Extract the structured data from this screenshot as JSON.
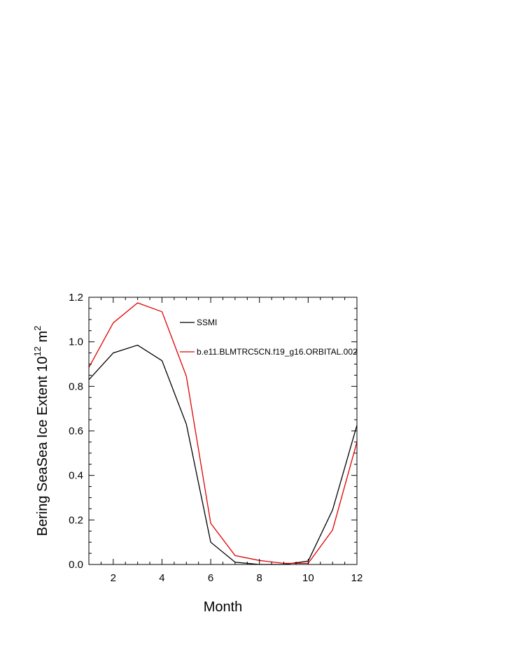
{
  "chart_data": {
    "type": "line",
    "xlabel": "Month",
    "ylabel_parts": [
      "Bering SeaSea Ice Extent 10",
      "12",
      " m",
      "2"
    ],
    "xlim": [
      1,
      12
    ],
    "ylim": [
      0,
      1.2
    ],
    "x_ticks": [
      2,
      4,
      6,
      8,
      10,
      12
    ],
    "y_ticks": [
      "0.0",
      "0.2",
      "0.4",
      "0.6",
      "0.8",
      "1.0",
      "1.2"
    ],
    "x": [
      1,
      2,
      3,
      4,
      5,
      6,
      7,
      8,
      9,
      10,
      11,
      12
    ],
    "series": [
      {
        "name": "SSMI",
        "color": "#000000",
        "values": [
          0.83,
          0.95,
          0.985,
          0.915,
          0.63,
          0.1,
          0.01,
          0.0,
          0.0,
          0.015,
          0.245,
          0.625
        ]
      },
      {
        "name": "b.e11.BLMTRC5CN.f19_g16.ORBITAL.002",
        "color": "#e00000",
        "values": [
          0.885,
          1.085,
          1.175,
          1.135,
          0.845,
          0.185,
          0.04,
          0.018,
          0.005,
          0.005,
          0.155,
          0.55
        ]
      }
    ],
    "legend_position": "top-center",
    "grid": false
  }
}
